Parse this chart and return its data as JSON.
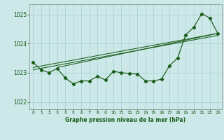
{
  "title": "Graphe pression niveau de la mer (hPa)",
  "bg_color": "#cce8e8",
  "grid_color": "#aad4d4",
  "line_color": "#1a5c1a",
  "xlim": [
    -0.5,
    23.5
  ],
  "ylim": [
    1021.75,
    1025.35
  ],
  "yticks": [
    1022,
    1023,
    1024,
    1025
  ],
  "xticks": [
    0,
    1,
    2,
    3,
    4,
    5,
    6,
    7,
    8,
    9,
    10,
    11,
    12,
    13,
    14,
    15,
    16,
    17,
    18,
    19,
    20,
    21,
    22,
    23
  ],
  "main_line": [
    1023.35,
    1023.1,
    1023.0,
    1023.15,
    1022.82,
    1022.62,
    1022.72,
    1022.72,
    1022.88,
    1022.75,
    1023.05,
    1023.0,
    1022.98,
    1022.95,
    1022.72,
    1022.72,
    1022.78,
    1023.25,
    1023.5,
    1024.3,
    1024.55,
    1025.02,
    1024.88,
    1024.35
  ],
  "trend_line1": [
    [
      0,
      1023.18
    ],
    [
      23,
      1024.35
    ]
  ],
  "trend_line2": [
    [
      0,
      1023.1
    ],
    [
      23,
      1024.28
    ]
  ],
  "trend_line3": [
    [
      3,
      1023.18
    ],
    [
      23,
      1024.35
    ]
  ]
}
